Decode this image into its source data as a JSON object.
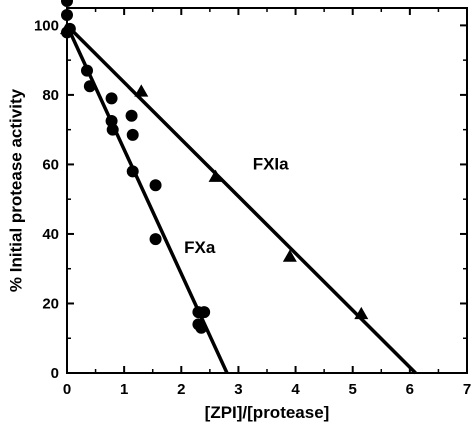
{
  "chart_data": {
    "type": "scatter",
    "xlabel": "[ZPI]/[protease]",
    "ylabel": "% Initial protease activity",
    "xlim": [
      0,
      7
    ],
    "ylim": [
      0,
      105
    ],
    "x_ticks": [
      "0",
      "1",
      "2",
      "3",
      "4",
      "5",
      "6",
      "7"
    ],
    "y_ticks": [
      "0",
      "20",
      "40",
      "60",
      "80",
      "100"
    ],
    "grid": false,
    "series": [
      {
        "name": "FXa",
        "marker": "circle",
        "color": "#000000",
        "points": [
          [
            0.0,
            107
          ],
          [
            0.0,
            103
          ],
          [
            0.0,
            98
          ],
          [
            0.05,
            99
          ],
          [
            0.35,
            87
          ],
          [
            0.4,
            82.5
          ],
          [
            0.78,
            79
          ],
          [
            0.78,
            72.5
          ],
          [
            0.8,
            70
          ],
          [
            1.13,
            74
          ],
          [
            1.15,
            68.5
          ],
          [
            1.15,
            58
          ],
          [
            1.55,
            54
          ],
          [
            1.55,
            38.5
          ],
          [
            2.3,
            17.5
          ],
          [
            2.4,
            17.5
          ],
          [
            2.3,
            14
          ],
          [
            2.35,
            13
          ]
        ],
        "fit_line": [
          [
            0,
            100
          ],
          [
            2.8,
            0
          ]
        ]
      },
      {
        "name": "FXIa",
        "marker": "triangle",
        "color": "#000000",
        "points": [
          [
            0.0,
            99
          ],
          [
            1.3,
            81
          ],
          [
            2.6,
            56.5
          ],
          [
            3.9,
            33.5
          ],
          [
            5.15,
            17
          ]
        ],
        "fit_line": [
          [
            0,
            100
          ],
          [
            6.1,
            0
          ]
        ]
      }
    ]
  }
}
